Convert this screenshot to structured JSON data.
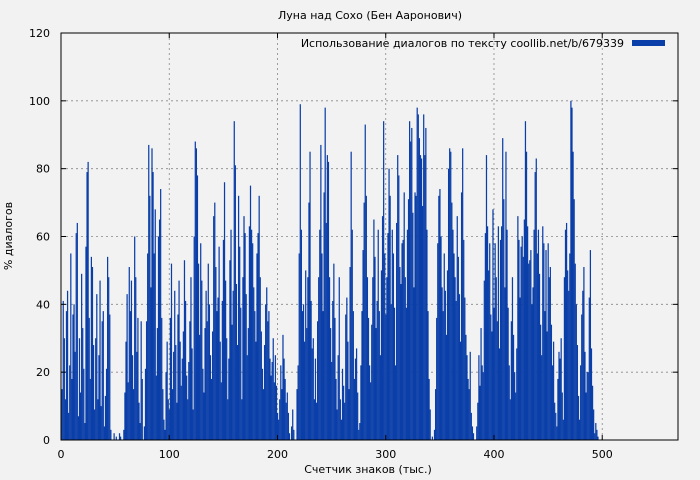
{
  "chart_data": {
    "type": "bar",
    "title": "Луна над Сохо (Бен Ааронович)",
    "xlabel": "Счетчик знаков (тыс.)",
    "ylabel": "% диалогов",
    "xlim": [
      0,
      570
    ],
    "ylim": [
      0,
      120
    ],
    "xticks": [
      0,
      100,
      200,
      300,
      400,
      500
    ],
    "yticks": [
      0,
      20,
      40,
      60,
      80,
      100,
      120
    ],
    "grid": true,
    "legend_position": "top-right",
    "series": [
      {
        "name": "Использование диалогов по тексту coollib.net/b/679339",
        "color": "#0a3ea8",
        "x_start": 1,
        "x_step": 1,
        "values": [
          15,
          41,
          30,
          12,
          38,
          44,
          8,
          22,
          55,
          18,
          37,
          40,
          26,
          61,
          64,
          7,
          30,
          14,
          49,
          33,
          21,
          5,
          57,
          79,
          82,
          36,
          18,
          54,
          51,
          28,
          9,
          30,
          43,
          12,
          25,
          47,
          10,
          35,
          38,
          4,
          13,
          21,
          54,
          48,
          37,
          3,
          0,
          0,
          2,
          0,
          1,
          0,
          0,
          2,
          1,
          0,
          0,
          3,
          14,
          29,
          43,
          17,
          51,
          38,
          47,
          25,
          15,
          60,
          48,
          26,
          36,
          11,
          5,
          35,
          18,
          0,
          4,
          21,
          35,
          55,
          87,
          72,
          45,
          86,
          79,
          55,
          68,
          19,
          33,
          60,
          65,
          74,
          36,
          15,
          6,
          3,
          20,
          29,
          12,
          9,
          36,
          52,
          15,
          26,
          44,
          28,
          11,
          37,
          47,
          29,
          16,
          24,
          32,
          53,
          41,
          19,
          12,
          23,
          35,
          48,
          27,
          9,
          60,
          88,
          86,
          78,
          52,
          31,
          58,
          47,
          21,
          14,
          33,
          44,
          35,
          52,
          40,
          25,
          18,
          32,
          66,
          70,
          51,
          38,
          42,
          57,
          29,
          17,
          41,
          59,
          76,
          47,
          30,
          12,
          24,
          53,
          62,
          34,
          44,
          94,
          81,
          46,
          28,
          72,
          57,
          39,
          12,
          48,
          66,
          61,
          43,
          25,
          33,
          63,
          75,
          62,
          58,
          45,
          38,
          29,
          55,
          61,
          72,
          48,
          32,
          21,
          15,
          28,
          40,
          45,
          35,
          38,
          24,
          19,
          23,
          30,
          17,
          25,
          16,
          8,
          6,
          12,
          22,
          15,
          31,
          24,
          18,
          11,
          14,
          8,
          2,
          0,
          4,
          9,
          3,
          0,
          0,
          15,
          22,
          55,
          99,
          62,
          38,
          40,
          29,
          50,
          33,
          48,
          70,
          85,
          41,
          27,
          30,
          12,
          24,
          11,
          35,
          48,
          62,
          87,
          55,
          38,
          73,
          98,
          64,
          84,
          82,
          48,
          33,
          23,
          41,
          52,
          36,
          18,
          9,
          25,
          48,
          12,
          6,
          21,
          16,
          11,
          37,
          42,
          29,
          15,
          51,
          85,
          62,
          38,
          18,
          24,
          27,
          14,
          3,
          5,
          22,
          38,
          56,
          70,
          93,
          72,
          48,
          36,
          22,
          17,
          34,
          48,
          65,
          54,
          33,
          41,
          62,
          38,
          25,
          50,
          66,
          94,
          55,
          37,
          48,
          61,
          80,
          72,
          40,
          62,
          55,
          39,
          22,
          64,
          84,
          78,
          51,
          46,
          58,
          59,
          73,
          48,
          39,
          62,
          71,
          94,
          88,
          92,
          67,
          45,
          73,
          72,
          98,
          96,
          89,
          84,
          83,
          69,
          96,
          84,
          92,
          62,
          38,
          18,
          9,
          0,
          1,
          0,
          3,
          15,
          36,
          58,
          72,
          74,
          60,
          45,
          38,
          55,
          44,
          31,
          50,
          80,
          86,
          85,
          70,
          62,
          55,
          48,
          41,
          66,
          54,
          43,
          29,
          73,
          86,
          59,
          42,
          31,
          25,
          18,
          15,
          26,
          8,
          4,
          2,
          0,
          0,
          4,
          11,
          25,
          16,
          33,
          22,
          20,
          47,
          61,
          84,
          63,
          50,
          58,
          37,
          32,
          68,
          39,
          58,
          48,
          35,
          63,
          27,
          59,
          63,
          89,
          71,
          45,
          85,
          62,
          39,
          22,
          12,
          35,
          48,
          31,
          20,
          14,
          27,
          66,
          59,
          42,
          57,
          60,
          54,
          65,
          94,
          85,
          63,
          52,
          53,
          56,
          40,
          45,
          62,
          79,
          83,
          55,
          62,
          49,
          34,
          25,
          63,
          58,
          38,
          56,
          32,
          58,
          48,
          51,
          34,
          22,
          29,
          11,
          8,
          4,
          18,
          26,
          24,
          30,
          14,
          6,
          48,
          62,
          64,
          50,
          44,
          55,
          100,
          98,
          85,
          71,
          52,
          40,
          28,
          13,
          6,
          22,
          37,
          44,
          51,
          26,
          14,
          20,
          20,
          42,
          56,
          27,
          16,
          9,
          2,
          5,
          3,
          1
        ]
      }
    ]
  }
}
